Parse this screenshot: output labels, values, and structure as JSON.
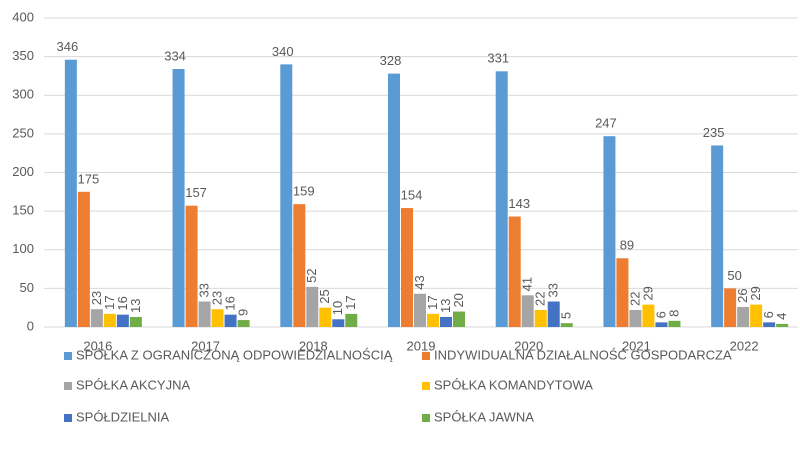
{
  "chart_data": {
    "type": "bar",
    "categories": [
      "2016",
      "2017",
      "2018",
      "2019",
      "2020",
      "2021",
      "2022"
    ],
    "series": [
      {
        "name": "SPÓŁKA Z OGRANICZONĄ ODPOWIEDZIALNOŚCIĄ",
        "color": "#5b9bd5",
        "values": [
          346,
          334,
          340,
          328,
          331,
          247,
          235
        ]
      },
      {
        "name": "INDYWIDUALNA DZIAŁALNOŚĆ GOSPODARCZA",
        "color": "#ed7d31",
        "values": [
          175,
          157,
          159,
          154,
          143,
          89,
          50
        ]
      },
      {
        "name": "SPÓŁKA AKCYJNA",
        "color": "#a5a5a5",
        "values": [
          23,
          33,
          52,
          43,
          41,
          22,
          26
        ]
      },
      {
        "name": "SPÓŁKA KOMANDYTOWA",
        "color": "#ffc000",
        "values": [
          17,
          23,
          25,
          17,
          22,
          29,
          29
        ]
      },
      {
        "name": "SPÓŁDZIELNIA",
        "color": "#4472c4",
        "values": [
          16,
          16,
          10,
          13,
          33,
          6,
          6
        ]
      },
      {
        "name": "SPÓŁKA JAWNA",
        "color": "#70ad47",
        "values": [
          13,
          9,
          17,
          20,
          5,
          8,
          4
        ]
      }
    ],
    "ylim": [
      0,
      400
    ],
    "yticks": [
      0,
      50,
      100,
      150,
      200,
      250,
      300,
      350,
      400
    ],
    "grid": true
  }
}
